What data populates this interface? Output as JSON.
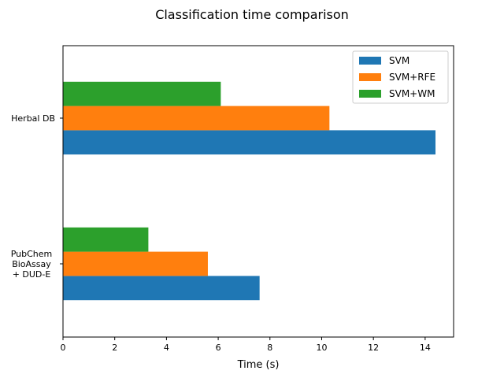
{
  "chart_data": {
    "type": "bar",
    "orientation": "horizontal",
    "title": "Classification time comparison",
    "xlabel": "Time (s)",
    "ylabel": "",
    "xlim": [
      0,
      15.1
    ],
    "xticks": [
      0,
      2,
      4,
      6,
      8,
      10,
      12,
      14
    ],
    "categories": [
      [
        "PubChem",
        "BioAssay",
        "+ DUD-E"
      ],
      [
        "Herbal DB"
      ]
    ],
    "series": [
      {
        "name": "SVM",
        "color": "#1f77b4",
        "values": [
          7.6,
          14.4
        ]
      },
      {
        "name": "SVM+RFE",
        "color": "#ff7f0e",
        "values": [
          5.6,
          10.3
        ]
      },
      {
        "name": "SVM+WM",
        "color": "#2ca02c",
        "values": [
          3.3,
          6.1
        ]
      }
    ],
    "legend_position": "top-right",
    "grid": false
  }
}
